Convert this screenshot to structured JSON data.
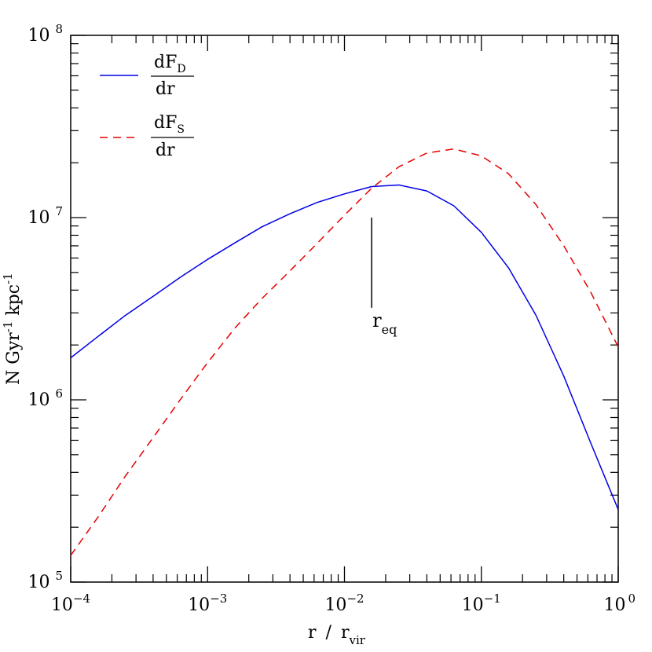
{
  "chart_data": {
    "type": "line",
    "xscale": "log",
    "yscale": "log",
    "xlim": [
      0.0001,
      1
    ],
    "ylim": [
      100000,
      100000000
    ],
    "grid": false,
    "legend_position": "top-left",
    "xlabel": {
      "main": "r",
      "sep": "/",
      "sym": "r",
      "sub": "vir"
    },
    "ylabel": {
      "p1": "N Gyr",
      "sup1": "-1",
      "p2": " kpc",
      "sup2": "-1"
    },
    "x_ticks": [
      {
        "value": 0.0001,
        "base": "10",
        "exp": "-4"
      },
      {
        "value": 0.001,
        "base": "10",
        "exp": "-3"
      },
      {
        "value": 0.01,
        "base": "10",
        "exp": "-2"
      },
      {
        "value": 0.1,
        "base": "10",
        "exp": "-1"
      },
      {
        "value": 1,
        "base": "10",
        "exp": "0"
      }
    ],
    "y_ticks": [
      {
        "value": 100000,
        "base": "10",
        "exp": "5"
      },
      {
        "value": 1000000,
        "base": "10",
        "exp": "6"
      },
      {
        "value": 10000000,
        "base": "10",
        "exp": "7"
      },
      {
        "value": 100000000,
        "base": "10",
        "exp": "8"
      }
    ],
    "series": [
      {
        "key": "D",
        "legend_num": "dF",
        "legend_sub": "D",
        "legend_den": "dr",
        "color": "#0000e6",
        "dash": "solid",
        "x": [
          0.0001,
          0.00016,
          0.00025,
          0.0004,
          0.00063,
          0.001,
          0.0016,
          0.0025,
          0.004,
          0.0063,
          0.01,
          0.0158,
          0.025,
          0.04,
          0.063,
          0.1,
          0.158,
          0.25,
          0.4,
          0.63,
          1
        ],
        "y": [
          1700000,
          2240000,
          2900000,
          3700000,
          4700000,
          5900000,
          7300000,
          8900000,
          10500000,
          12100000,
          13500000,
          14800000,
          15100000,
          14000000,
          11600000,
          8300000,
          5300000,
          2920000,
          1350000,
          580000,
          250000
        ]
      },
      {
        "key": "S",
        "legend_num": "dF",
        "legend_sub": "S",
        "legend_den": "dr",
        "color": "#e60000",
        "dash": "dashed",
        "x": [
          0.0001,
          0.00016,
          0.00025,
          0.0004,
          0.00063,
          0.001,
          0.0016,
          0.0025,
          0.004,
          0.0063,
          0.01,
          0.0158,
          0.025,
          0.04,
          0.063,
          0.1,
          0.158,
          0.25,
          0.4,
          0.63,
          1
        ],
        "y": [
          140000,
          230000,
          380000,
          620000,
          1000000,
          1600000,
          2500000,
          3600000,
          5100000,
          7200000,
          10300000,
          14500000,
          19000000,
          22600000,
          23800000,
          21800000,
          17400000,
          11800000,
          7000000,
          3900000,
          1950000
        ]
      }
    ],
    "annotation": {
      "x": 0.0158,
      "y_top": 10000000,
      "y_bottom": 3200000,
      "label": "r",
      "label_sub": "eq"
    }
  }
}
